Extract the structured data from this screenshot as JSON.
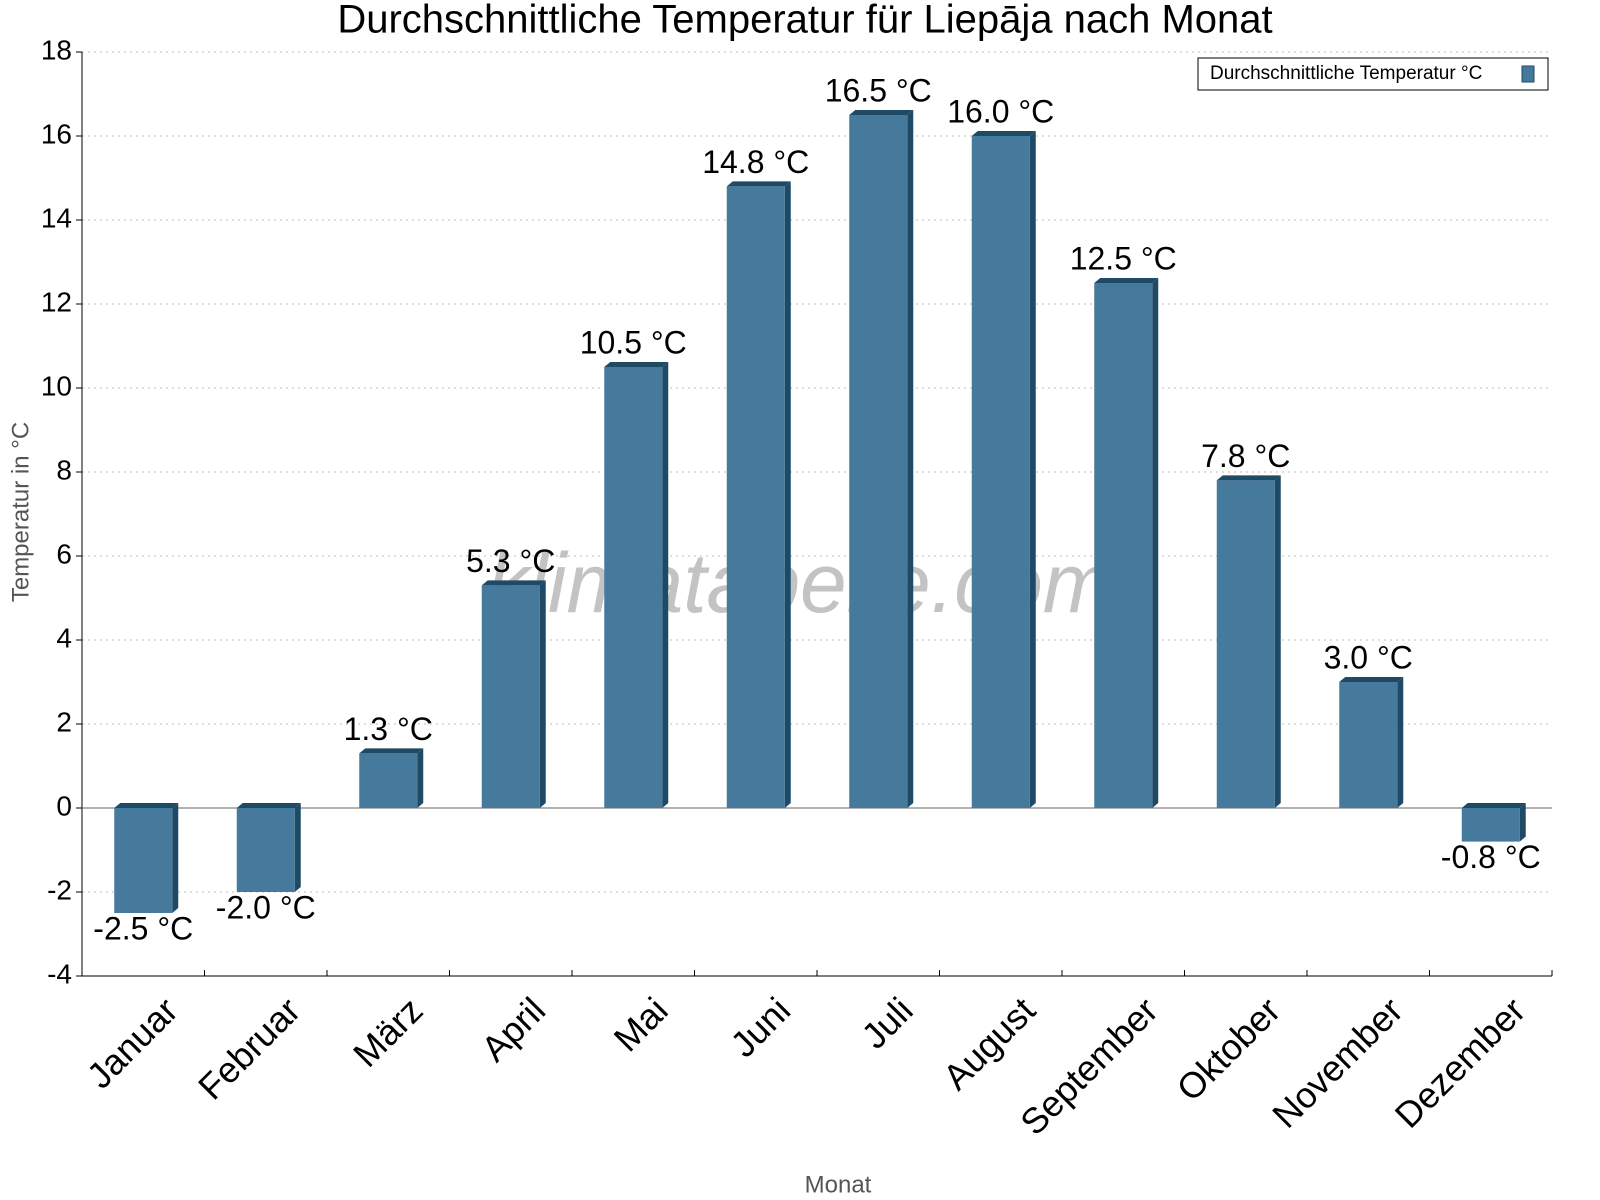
{
  "chart_data": {
    "type": "bar",
    "title": "Durchschnittliche Temperatur für Liepāja nach Monat",
    "x_label": "Monat",
    "y_label": "Temperatur in °C",
    "watermark": "klimatabelle.com",
    "categories": [
      "Januar",
      "Februar",
      "März",
      "April",
      "Mai",
      "Juni",
      "Juli",
      "August",
      "September",
      "Oktober",
      "November",
      "Dezember"
    ],
    "series": [
      {
        "name": "Durchschnittliche Temperatur °C",
        "color": "#467a9c",
        "values": [
          -2.5,
          -2.0,
          1.3,
          5.3,
          10.5,
          14.8,
          16.5,
          16.0,
          12.5,
          7.8,
          3.0,
          -0.8
        ],
        "value_labels": [
          "-2.5 °C",
          "-2.0 °C",
          "1.3 °C",
          "5.3 °C",
          "10.5 °C",
          "14.8 °C",
          "16.5 °C",
          "16.0 °C",
          "12.5 °C",
          "7.8 °C",
          "3.0 °C",
          "-0.8 °C"
        ]
      }
    ],
    "ylim": [
      -4,
      18
    ],
    "yticks": [
      -4,
      -2,
      0,
      2,
      4,
      6,
      8,
      10,
      12,
      14,
      16,
      18
    ],
    "grid": true,
    "legend": "top-right"
  }
}
